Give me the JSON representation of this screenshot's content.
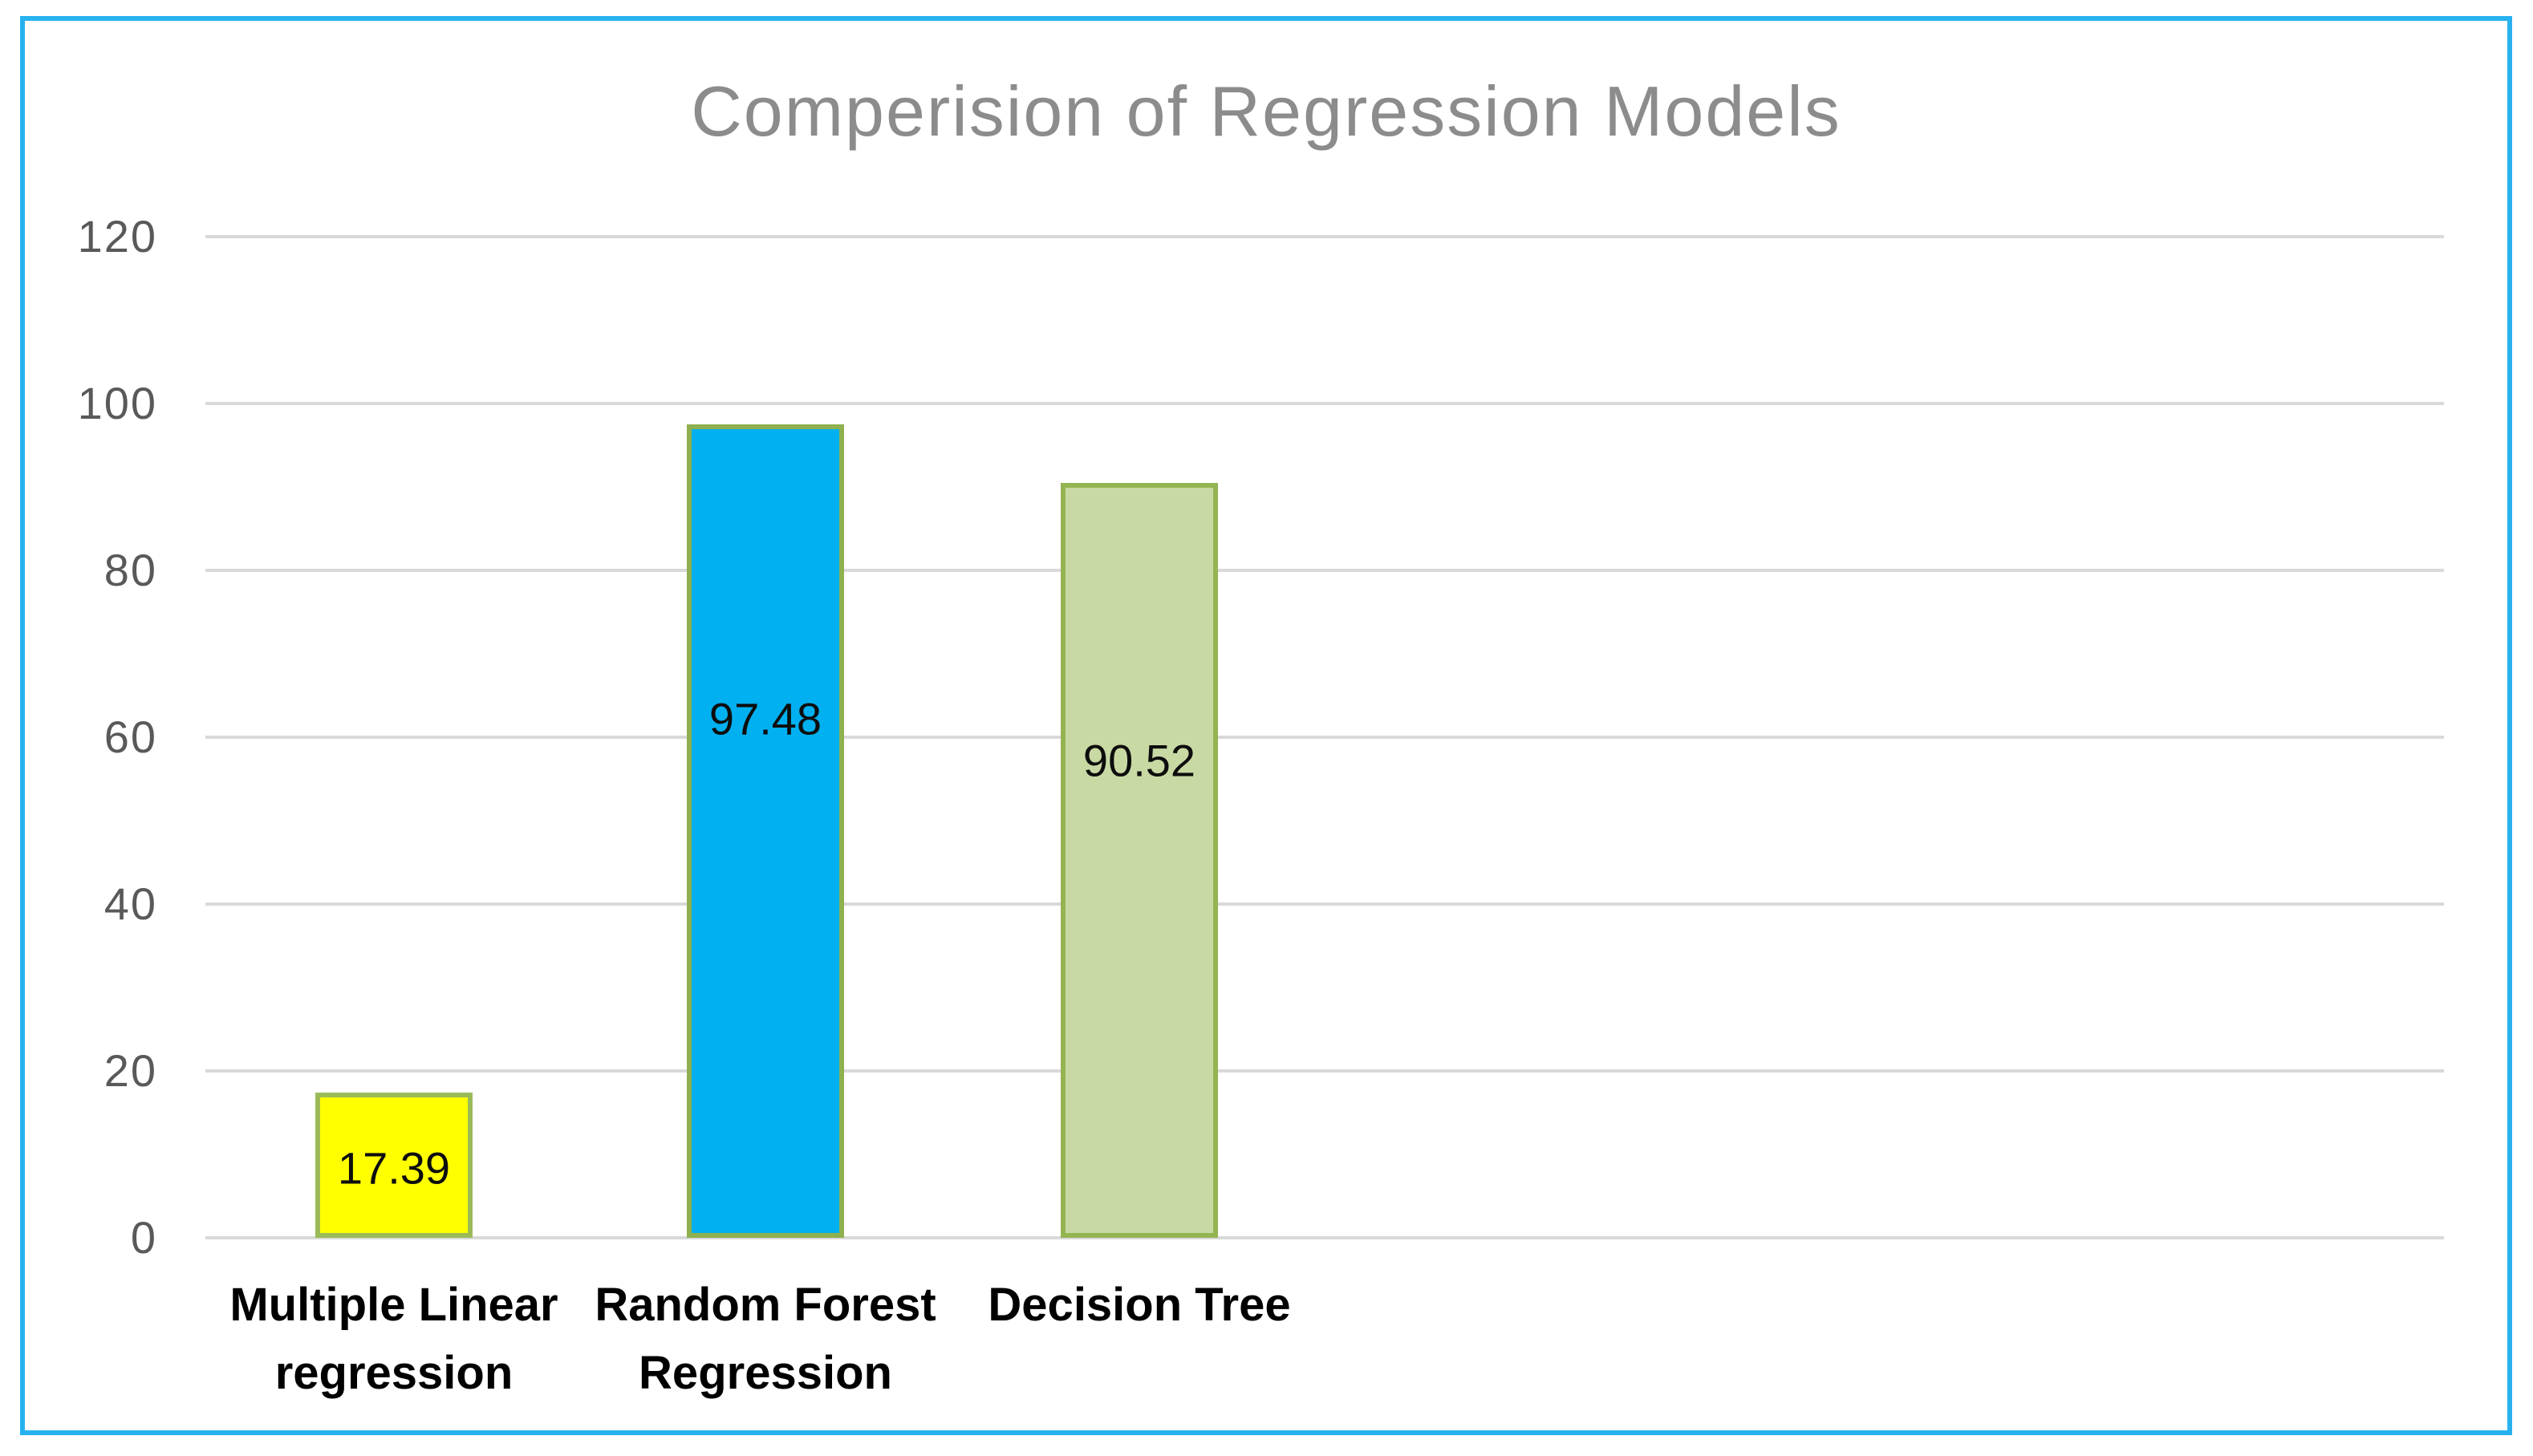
{
  "frame": {
    "border_color": "#27B2EF",
    "background": "#FFFFFF"
  },
  "chart_data": {
    "type": "bar",
    "title": "Comperision of Regression Models",
    "title_color": "#8C8C8C",
    "categories": [
      "Multiple Linear regression",
      "Random Forest Regression",
      "Decision Tree"
    ],
    "category_lines": [
      [
        "Multiple Linear",
        "regression"
      ],
      [
        "Random Forest",
        "Regression"
      ],
      [
        "Decision Tree"
      ]
    ],
    "values": [
      17.39,
      97.48,
      90.52
    ],
    "data_labels": [
      "17.39",
      "97.48",
      "90.52"
    ],
    "bar_fill_colors": [
      "#FFFF00",
      "#00B0F0",
      "#C9D9A4"
    ],
    "bar_border_colors": [
      "#9BBB59",
      "#8FB04E",
      "#94B452"
    ],
    "xlabel": "",
    "ylabel": "",
    "ylim": [
      0,
      120
    ],
    "yticks": [
      0,
      20,
      40,
      60,
      80,
      100,
      120
    ],
    "ytick_labels": [
      "0",
      "20",
      "40",
      "60",
      "80",
      "100",
      "120"
    ],
    "tick_label_color": "#595959",
    "gridline_color": "#D9D9D9",
    "grid": true,
    "legend": false,
    "data_label_color": "#0D0D0D",
    "category_label_color": "#000000"
  }
}
